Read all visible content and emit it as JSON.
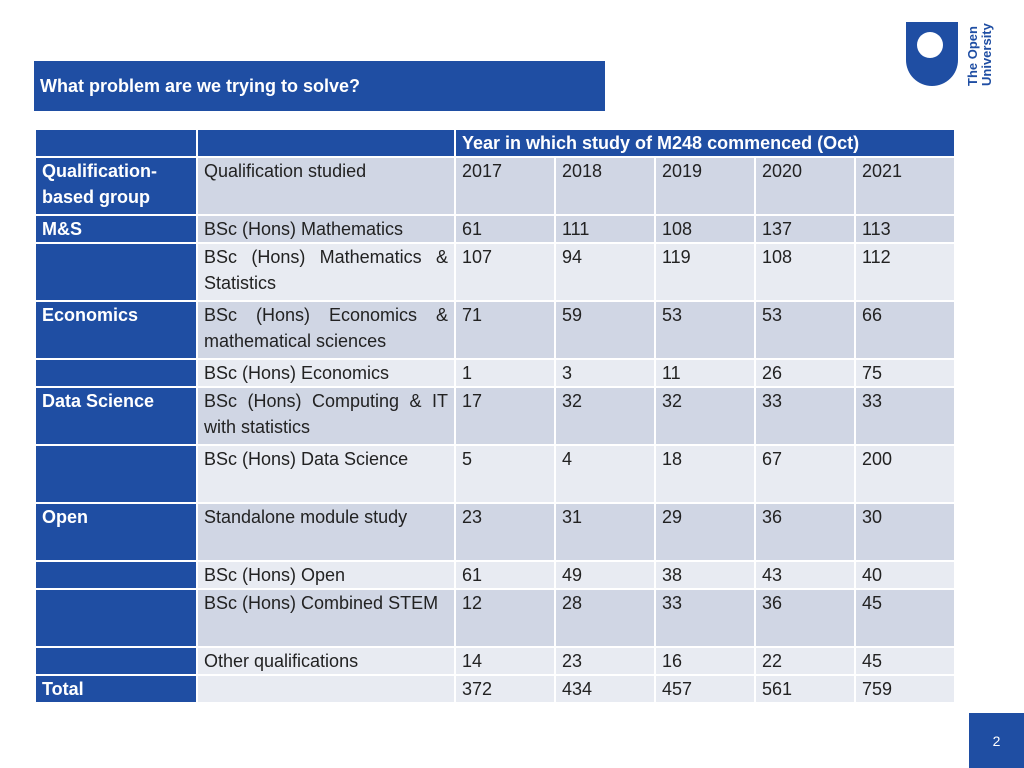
{
  "slide": {
    "title": "What problem are we trying to solve?",
    "page_number": "2"
  },
  "logo": {
    "line1": "The Open",
    "line2": "University"
  },
  "colors": {
    "brand_blue": "#1f4ea3",
    "row_dark": "#d0d6e4",
    "row_light": "#e8ebf2"
  },
  "table": {
    "span_header": "Year in which study of M248 commenced (Oct)",
    "group_header": "Qualification-based group",
    "qual_header": "Qualification studied",
    "years": [
      "2017",
      "2018",
      "2019",
      "2020",
      "2021"
    ],
    "rows": [
      {
        "group": "M&S",
        "qual": "BSc (Hons) Mathematics",
        "values": [
          "61",
          "111",
          "108",
          "137",
          "113"
        ]
      },
      {
        "group": "",
        "qual": "BSc (Hons) Mathematics & Statistics",
        "values": [
          "107",
          "94",
          "119",
          "108",
          "112"
        ]
      },
      {
        "group": "Economics",
        "qual": "BSc (Hons) Economics & mathematical sciences",
        "values": [
          "71",
          "59",
          "53",
          "53",
          "66"
        ]
      },
      {
        "group": "",
        "qual": "BSc (Hons) Economics",
        "values": [
          "1",
          "3",
          "11",
          "26",
          "75"
        ]
      },
      {
        "group": "Data Science",
        "qual": "BSc (Hons) Computing & IT with statistics",
        "values": [
          "17",
          "32",
          "32",
          "33",
          "33"
        ]
      },
      {
        "group": "",
        "qual": "BSc (Hons) Data Science",
        "values": [
          "5",
          "4",
          "18",
          "67",
          "200"
        ]
      },
      {
        "group": "Open",
        "qual": "Standalone module study",
        "values": [
          "23",
          "31",
          "29",
          "36",
          "30"
        ]
      },
      {
        "group": "",
        "qual": "BSc (Hons) Open",
        "values": [
          "61",
          "49",
          "38",
          "43",
          "40"
        ]
      },
      {
        "group": "",
        "qual": "BSc (Hons) Combined STEM",
        "values": [
          "12",
          "28",
          "33",
          "36",
          "45"
        ]
      },
      {
        "group": "",
        "qual": "Other qualifications",
        "values": [
          "14",
          "23",
          "16",
          "22",
          "45"
        ]
      }
    ],
    "total": {
      "label": "Total",
      "qual": "",
      "values": [
        "372",
        "434",
        "457",
        "561",
        "759"
      ]
    }
  }
}
